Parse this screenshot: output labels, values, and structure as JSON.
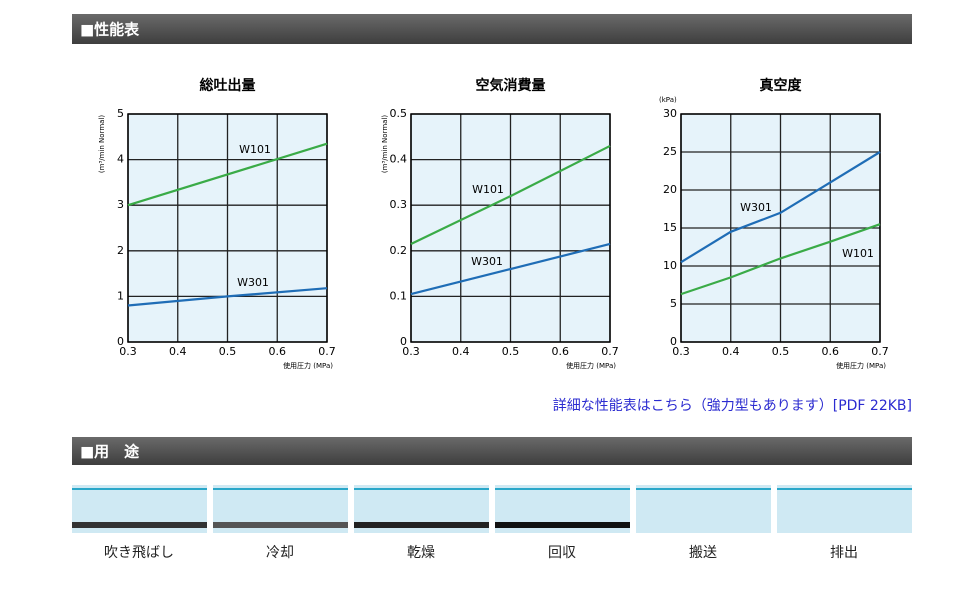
{
  "performance_header": "■性能表",
  "chart_data": [
    {
      "type": "line",
      "title": "総吐出量",
      "ylabel": "(m³/min Normal)",
      "xlabel": "使用圧力 (MPa)",
      "xlim": [
        0.3,
        0.7
      ],
      "xticks": [
        0.3,
        0.4,
        0.5,
        0.6,
        0.7
      ],
      "ylim": [
        0,
        5
      ],
      "yticks": [
        0,
        1,
        2,
        3,
        4,
        5
      ],
      "grid": true,
      "series": [
        {
          "name": "W101",
          "color": "#3aab47",
          "x": [
            0.3,
            0.7
          ],
          "values": [
            3.0,
            4.35
          ]
        },
        {
          "name": "W301",
          "color": "#1f6db6",
          "x": [
            0.3,
            0.5,
            0.7
          ],
          "values": [
            0.8,
            1.0,
            1.18
          ]
        }
      ]
    },
    {
      "type": "line",
      "title": "空気消費量",
      "ylabel": "(m³/min Normal)",
      "xlabel": "使用圧力 (MPa)",
      "xlim": [
        0.3,
        0.7
      ],
      "xticks": [
        0.3,
        0.4,
        0.5,
        0.6,
        0.7
      ],
      "ylim": [
        0,
        0.5
      ],
      "yticks": [
        0,
        0.1,
        0.2,
        0.3,
        0.4,
        0.5
      ],
      "grid": true,
      "series": [
        {
          "name": "W101",
          "color": "#3aab47",
          "x": [
            0.3,
            0.5,
            0.7
          ],
          "values": [
            0.215,
            0.32,
            0.43
          ]
        },
        {
          "name": "W301",
          "color": "#1f6db6",
          "x": [
            0.3,
            0.5,
            0.7
          ],
          "values": [
            0.105,
            0.16,
            0.215
          ]
        }
      ]
    },
    {
      "type": "line",
      "title": "真空度",
      "ylabel": "(kPa)",
      "xlabel": "使用圧力 (MPa)",
      "xlim": [
        0.3,
        0.7
      ],
      "xticks": [
        0.3,
        0.4,
        0.5,
        0.6,
        0.7
      ],
      "ylim": [
        0,
        30
      ],
      "yticks": [
        0,
        5,
        10,
        15,
        20,
        25,
        30
      ],
      "grid": true,
      "series": [
        {
          "name": "W301",
          "color": "#1f6db6",
          "x": [
            0.3,
            0.4,
            0.5,
            0.6,
            0.7
          ],
          "values": [
            10.5,
            14.5,
            17,
            21,
            25
          ]
        },
        {
          "name": "W101",
          "color": "#3aab47",
          "x": [
            0.3,
            0.4,
            0.5,
            0.6,
            0.7
          ],
          "values": [
            6.3,
            8.5,
            11,
            13.2,
            15.5
          ]
        }
      ]
    }
  ],
  "detail_link": "詳細な性能表はこちら（強力型もあります）[PDF 22KB]",
  "uses_header": "■用　途",
  "uses": [
    "吹き飛ばし",
    "冷却",
    "乾燥",
    "回収",
    "搬送",
    "排出"
  ]
}
